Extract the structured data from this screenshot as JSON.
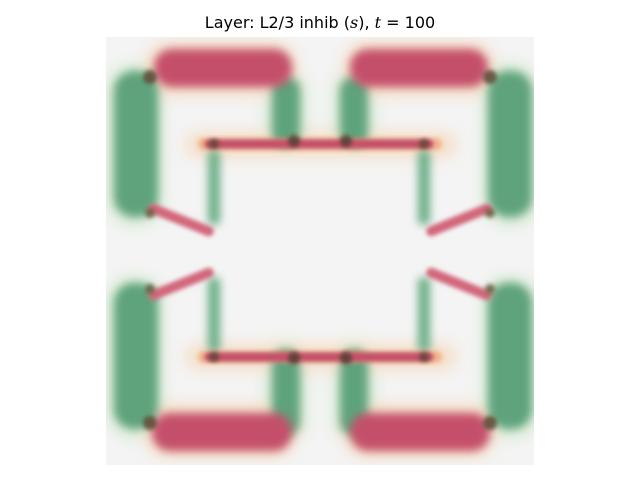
{
  "figure": {
    "title_prefix": "Layer: L2/3 inhib (",
    "title_var_s": "s",
    "title_mid": "), ",
    "title_var_t": "t",
    "title_suffix": " = 100"
  },
  "colors": {
    "background": "#f4f4f4",
    "excitatory_red": "#c4506a",
    "red_edge": "#f2b27a",
    "inhibitory_green": "#5fa37d",
    "green_edge": "#a9d8a6",
    "dark_overlap": "#5a4a36"
  }
}
